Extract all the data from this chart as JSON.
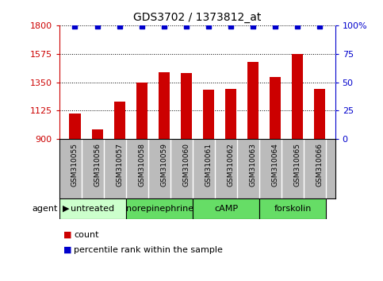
{
  "title": "GDS3702 / 1373812_at",
  "samples": [
    "GSM310055",
    "GSM310056",
    "GSM310057",
    "GSM310058",
    "GSM310059",
    "GSM310060",
    "GSM310061",
    "GSM310062",
    "GSM310063",
    "GSM310064",
    "GSM310065",
    "GSM310066"
  ],
  "bar_values": [
    1105,
    975,
    1195,
    1350,
    1430,
    1425,
    1290,
    1295,
    1510,
    1390,
    1570,
    1295
  ],
  "percentile_values": [
    99,
    99,
    99,
    99,
    99,
    99,
    99,
    99,
    99,
    99,
    99,
    99
  ],
  "bar_color": "#cc0000",
  "percentile_color": "#0000cc",
  "ylim_left": [
    900,
    1800
  ],
  "ylim_right": [
    0,
    100
  ],
  "yticks_left": [
    900,
    1125,
    1350,
    1575,
    1800
  ],
  "yticks_right": [
    0,
    25,
    50,
    75,
    100
  ],
  "groups": [
    {
      "label": "untreated",
      "start": 0,
      "end": 3,
      "color": "#ccffcc"
    },
    {
      "label": "norepinephrine",
      "start": 3,
      "end": 6,
      "color": "#66dd66"
    },
    {
      "label": "cAMP",
      "start": 6,
      "end": 9,
      "color": "#66dd66"
    },
    {
      "label": "forskolin",
      "start": 9,
      "end": 12,
      "color": "#66dd66"
    }
  ],
  "agent_label": "agent",
  "legend_count_label": "count",
  "legend_percentile_label": "percentile rank within the sample",
  "bar_width": 0.5,
  "background_color": "#ffffff",
  "ytick_left_color": "#cc0000",
  "ytick_right_color": "#0000cc",
  "sample_bg_color": "#bbbbbb",
  "sample_divider_color": "#ffffff",
  "group_border_color": "#000000"
}
